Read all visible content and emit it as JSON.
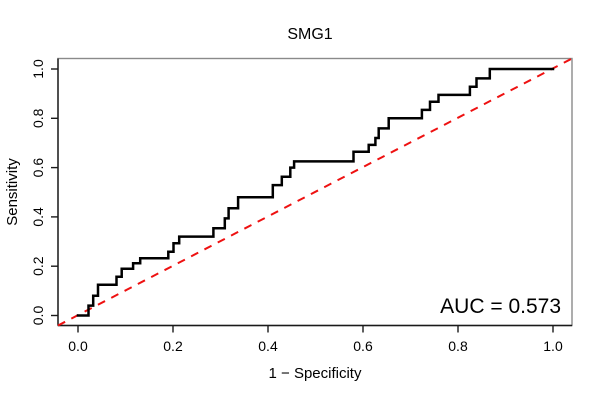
{
  "figure": {
    "title": "SMG1",
    "x_axis_label": "1 − Specificity",
    "y_axis_label": "Sensitivity",
    "auc_text": "AUC = 0.573"
  },
  "chart_data": {
    "type": "line",
    "subtype": "roc-step-curve",
    "title": "SMG1",
    "xlabel": "1 − Specificity",
    "ylabel": "Sensitivity",
    "xlim": [
      0.0,
      1.0
    ],
    "ylim": [
      0.0,
      1.0
    ],
    "grid": false,
    "x_ticks": {
      "values": [
        0.0,
        0.2,
        0.4,
        0.6,
        0.8,
        1.0
      ],
      "labels": [
        "0.0",
        "0.2",
        "0.4",
        "0.6",
        "0.8",
        "1.0"
      ]
    },
    "y_ticks": {
      "values": [
        0.0,
        0.2,
        0.4,
        0.6,
        0.8,
        1.0
      ],
      "labels": [
        "0.0",
        "0.2",
        "0.4",
        "0.6",
        "0.8",
        "1.0"
      ]
    },
    "annotation": {
      "text": "AUC = 0.573",
      "auc_value": 0.573,
      "position": "bottom-right"
    },
    "colors": {
      "roc_curve": "#000000",
      "chance_line": "#ee1111",
      "frame": "#8a8a8a",
      "axis": "#1a1a1a",
      "text": "#000000"
    },
    "series": [
      {
        "name": "ROC curve",
        "style": "step",
        "color": "#000000",
        "line_width": 2.5,
        "dash": "solid",
        "points": [
          [
            0.0,
            0.0
          ],
          [
            0.022,
            0.0
          ],
          [
            0.022,
            0.04
          ],
          [
            0.032,
            0.04
          ],
          [
            0.032,
            0.08
          ],
          [
            0.042,
            0.08
          ],
          [
            0.042,
            0.125
          ],
          [
            0.081,
            0.125
          ],
          [
            0.081,
            0.157
          ],
          [
            0.092,
            0.157
          ],
          [
            0.092,
            0.19
          ],
          [
            0.116,
            0.19
          ],
          [
            0.116,
            0.212
          ],
          [
            0.131,
            0.212
          ],
          [
            0.131,
            0.232
          ],
          [
            0.19,
            0.232
          ],
          [
            0.19,
            0.259
          ],
          [
            0.201,
            0.259
          ],
          [
            0.201,
            0.293
          ],
          [
            0.213,
            0.293
          ],
          [
            0.213,
            0.32
          ],
          [
            0.285,
            0.32
          ],
          [
            0.285,
            0.354
          ],
          [
            0.309,
            0.354
          ],
          [
            0.309,
            0.394
          ],
          [
            0.317,
            0.394
          ],
          [
            0.317,
            0.435
          ],
          [
            0.337,
            0.435
          ],
          [
            0.337,
            0.48
          ],
          [
            0.41,
            0.48
          ],
          [
            0.41,
            0.529
          ],
          [
            0.429,
            0.529
          ],
          [
            0.429,
            0.563
          ],
          [
            0.447,
            0.563
          ],
          [
            0.447,
            0.6
          ],
          [
            0.455,
            0.6
          ],
          [
            0.455,
            0.625
          ],
          [
            0.58,
            0.625
          ],
          [
            0.58,
            0.664
          ],
          [
            0.612,
            0.664
          ],
          [
            0.612,
            0.692
          ],
          [
            0.626,
            0.692
          ],
          [
            0.626,
            0.72
          ],
          [
            0.633,
            0.72
          ],
          [
            0.633,
            0.759
          ],
          [
            0.654,
            0.759
          ],
          [
            0.654,
            0.8
          ],
          [
            0.724,
            0.8
          ],
          [
            0.724,
            0.834
          ],
          [
            0.741,
            0.834
          ],
          [
            0.741,
            0.867
          ],
          [
            0.759,
            0.867
          ],
          [
            0.759,
            0.895
          ],
          [
            0.825,
            0.895
          ],
          [
            0.825,
            0.928
          ],
          [
            0.839,
            0.928
          ],
          [
            0.839,
            0.962
          ],
          [
            0.867,
            0.962
          ],
          [
            0.867,
            1.0
          ],
          [
            1.0,
            1.0
          ]
        ]
      },
      {
        "name": "Chance line",
        "style": "line",
        "color": "#ee1111",
        "line_width": 2,
        "dash": "8 7",
        "points": [
          [
            0.0,
            0.0
          ],
          [
            1.0,
            1.0
          ]
        ]
      }
    ]
  }
}
